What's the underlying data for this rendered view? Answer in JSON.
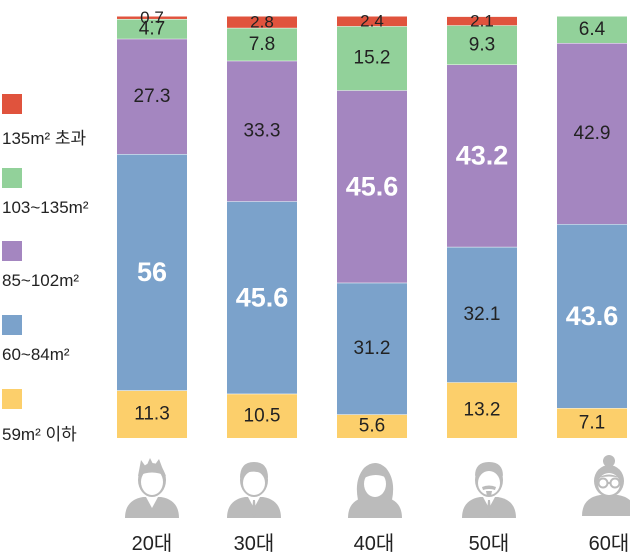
{
  "chart_data": {
    "type": "bar",
    "stacked": true,
    "categories": [
      "20대",
      "30대",
      "40대",
      "50대",
      "60대"
    ],
    "series": [
      {
        "name": "59m² 이하",
        "color": "#fccf6b",
        "values": [
          11.3,
          10.5,
          5.6,
          13.2,
          7.1
        ]
      },
      {
        "name": "60~84m²",
        "color": "#7ba2cb",
        "values": [
          56,
          45.6,
          31.2,
          32.1,
          43.6
        ]
      },
      {
        "name": "85~102m²",
        "color": "#a486c0",
        "values": [
          27.3,
          33.3,
          45.6,
          43.2,
          42.9
        ]
      },
      {
        "name": "103~135m²",
        "color": "#92d19a",
        "values": [
          4.7,
          7.8,
          15.2,
          9.3,
          6.4
        ]
      },
      {
        "name": "135m² 초과",
        "color": "#e0533d",
        "values": [
          0.7,
          2.8,
          2.4,
          2.1,
          0
        ]
      }
    ],
    "data_labels": [
      [
        "11.3",
        "56",
        "27.3",
        "4.7",
        "0.7"
      ],
      [
        "10.5",
        "45.6",
        "33.3",
        "7.8",
        "2.8"
      ],
      [
        "5.6",
        "31.2",
        "45.6",
        "15.2",
        "2.4"
      ],
      [
        "13.2",
        "32.1",
        "43.2",
        "9.3",
        "2.1"
      ],
      [
        "7.1",
        "43.6",
        "42.9",
        "6.4",
        ""
      ]
    ],
    "highlight": [
      [
        false,
        true,
        false,
        false,
        false
      ],
      [
        false,
        true,
        false,
        false,
        false
      ],
      [
        false,
        false,
        true,
        false,
        false
      ],
      [
        false,
        false,
        true,
        false,
        false
      ],
      [
        false,
        true,
        false,
        false,
        false
      ]
    ],
    "ylim": [
      0,
      100
    ],
    "legend_position": "left",
    "grid": false,
    "title": "",
    "xlabel": "",
    "ylabel": ""
  },
  "avatars": [
    {
      "icon": "young-man-icon"
    },
    {
      "icon": "man-icon"
    },
    {
      "icon": "woman-icon"
    },
    {
      "icon": "bearded-man-icon"
    },
    {
      "icon": "elderly-woman-glasses-icon"
    }
  ],
  "colors": {
    "label_dark": "#222222",
    "label_light": "#ffffff",
    "icon_gray": "#bbbbbb"
  }
}
